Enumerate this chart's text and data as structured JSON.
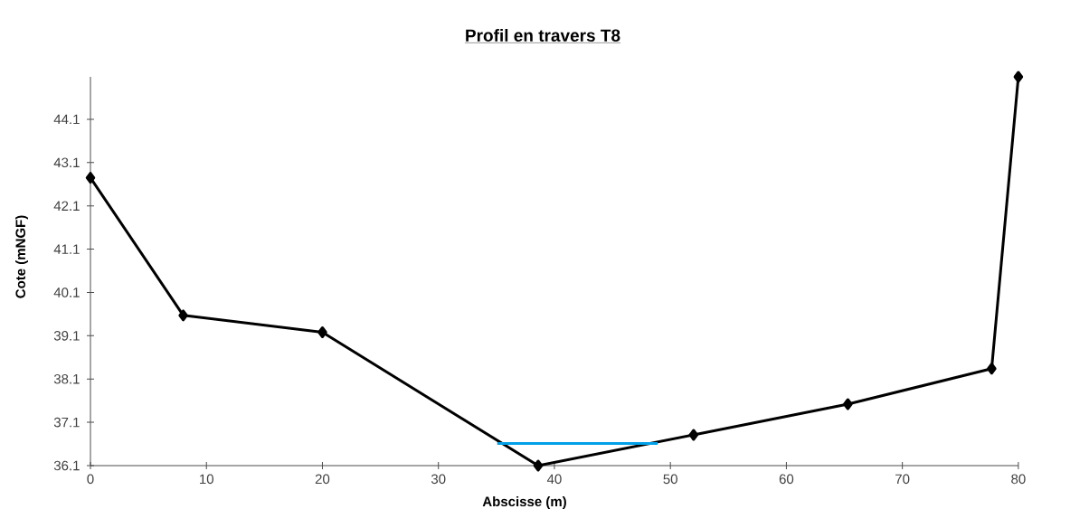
{
  "chart_data": {
    "type": "line",
    "title": "Profil en travers T8",
    "xlabel": "Abscisse (m)",
    "ylabel": "Cote (mNGF)",
    "xlim": [
      0,
      80
    ],
    "xticks": [
      0,
      10,
      20,
      30,
      40,
      50,
      60,
      70,
      80
    ],
    "ylim": [
      36.1,
      45.08
    ],
    "yticks": [
      36.1,
      37.1,
      38.1,
      39.1,
      40.1,
      41.1,
      42.1,
      43.1,
      44.1
    ],
    "grid": false,
    "line_style": "solid",
    "series": [
      {
        "color": "#000000",
        "marker": "diamond",
        "x": [
          0,
          8,
          20,
          38.6,
          52,
          65.3,
          77.7,
          80
        ],
        "values": [
          42.75,
          39.57,
          39.18,
          36.1,
          36.81,
          37.52,
          38.34,
          45.08
        ]
      },
      {
        "color": "#00a0e6",
        "marker": "none",
        "x": [
          35.07,
          48.9
        ],
        "values": [
          36.61,
          36.61
        ]
      }
    ]
  }
}
